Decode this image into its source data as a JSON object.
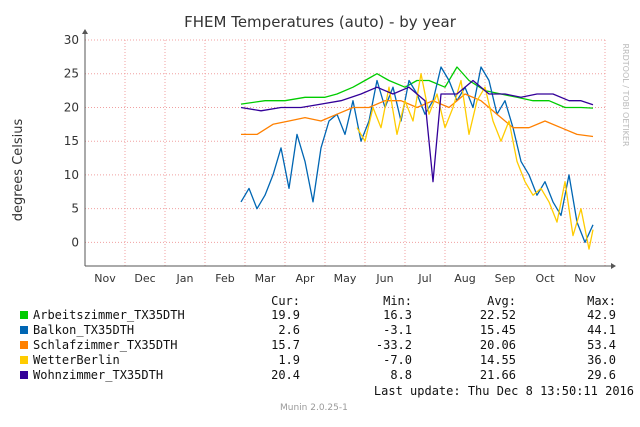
{
  "chart_data": {
    "type": "line",
    "title": "FHEM Temperatures (auto) - by year",
    "ylabel": "degrees Celsius",
    "watermark": "RRDTOOL / TOBI OETIKER",
    "months": [
      "Nov",
      "Dec",
      "Jan",
      "Feb",
      "Mar",
      "Apr",
      "May",
      "Jun",
      "Jul",
      "Aug",
      "Sep",
      "Oct",
      "Nov"
    ],
    "ylim": [
      -3.5,
      30
    ],
    "yticks": [
      0,
      5,
      10,
      15,
      20,
      25,
      30
    ],
    "grid": true,
    "series": [
      {
        "name": "Arbeitszimmer_TX35DTH",
        "color": "#00cc00",
        "x": [
          3.9,
          4.5,
          5,
          5.5,
          6,
          6.3,
          6.7,
          7,
          7.3,
          7.6,
          8,
          8.3,
          8.6,
          9,
          9.3,
          9.6,
          10,
          10.4,
          10.8,
          11.2,
          11.6,
          12,
          12.4,
          12.7
        ],
        "y": [
          20.5,
          21,
          21,
          21.5,
          21.5,
          22,
          23,
          24,
          25,
          24,
          23,
          24,
          24,
          23,
          26,
          24,
          22.5,
          22,
          21.5,
          21,
          21,
          20,
          20,
          19.9
        ]
      },
      {
        "name": "Balkon_TX35DTH",
        "color": "#0066b3",
        "x": [
          3.9,
          4.1,
          4.3,
          4.5,
          4.7,
          4.9,
          5.1,
          5.3,
          5.5,
          5.7,
          5.9,
          6.1,
          6.3,
          6.5,
          6.7,
          6.9,
          7.1,
          7.3,
          7.5,
          7.7,
          7.9,
          8.1,
          8.3,
          8.5,
          8.7,
          8.9,
          9.1,
          9.3,
          9.5,
          9.7,
          9.9,
          10.1,
          10.3,
          10.5,
          10.7,
          10.9,
          11.1,
          11.3,
          11.5,
          11.7,
          11.9,
          12.1,
          12.3,
          12.5,
          12.7
        ],
        "y": [
          6,
          8,
          5,
          7,
          10,
          14,
          8,
          16,
          12,
          6,
          14,
          18,
          19,
          16,
          21,
          15,
          18,
          24,
          20,
          23,
          18,
          24,
          22,
          19,
          21,
          26,
          24,
          21,
          23,
          20,
          26,
          24,
          19,
          21,
          17,
          12,
          10,
          7,
          9,
          6,
          4,
          10,
          3,
          0,
          2.6
        ]
      },
      {
        "name": "Schlafzimmer_TX35DTH",
        "color": "#ff8000",
        "x": [
          3.9,
          4.3,
          4.7,
          5.1,
          5.5,
          5.9,
          6.3,
          6.7,
          7.1,
          7.5,
          7.9,
          8.3,
          8.7,
          9.1,
          9.5,
          9.9,
          10.3,
          10.7,
          11.1,
          11.5,
          11.9,
          12.3,
          12.7
        ],
        "y": [
          16,
          16,
          17.5,
          18,
          18.5,
          18,
          19,
          20,
          20,
          21,
          21,
          20,
          21,
          20,
          22,
          21,
          19,
          17,
          17,
          18,
          17,
          16,
          15.7
        ]
      },
      {
        "name": "WetterBerlin",
        "color": "#ffcc00",
        "x": [
          6.8,
          7.0,
          7.2,
          7.4,
          7.6,
          7.8,
          8.0,
          8.2,
          8.4,
          8.6,
          8.8,
          9.0,
          9.2,
          9.4,
          9.6,
          9.8,
          10.0,
          10.2,
          10.4,
          10.6,
          10.8,
          11.0,
          11.2,
          11.4,
          11.6,
          11.8,
          12.0,
          12.2,
          12.4,
          12.6,
          12.7
        ],
        "y": [
          17,
          15,
          20,
          17,
          23,
          16,
          21,
          18,
          25,
          19,
          22,
          17,
          20,
          24,
          16,
          21,
          23,
          18,
          15,
          18,
          12,
          9,
          7,
          8,
          6,
          3,
          9,
          1,
          5,
          -1,
          1.9
        ]
      },
      {
        "name": "Wohnzimmer_TX35DTH",
        "color": "#330099",
        "x": [
          3.9,
          4.4,
          4.9,
          5.4,
          5.9,
          6.4,
          6.9,
          7.3,
          7.7,
          8.1,
          8.5,
          8.7,
          8.9,
          9.3,
          9.7,
          10.1,
          10.5,
          10.9,
          11.3,
          11.7,
          12.1,
          12.4,
          12.7
        ],
        "y": [
          20,
          19.5,
          20,
          20,
          20.5,
          21,
          22,
          23,
          22,
          23,
          21,
          9,
          22,
          22,
          24,
          22,
          22,
          21.5,
          22,
          22,
          21,
          21,
          20.4
        ]
      }
    ]
  },
  "legend": {
    "headers": {
      "cur": "Cur:",
      "min": "Min:",
      "avg": "Avg:",
      "max": "Max:"
    },
    "rows": [
      {
        "name": "Arbeitszimmer_TX35DTH",
        "cur": "19.9",
        "min": "16.3",
        "avg": "22.52",
        "max": "42.9"
      },
      {
        "name": "Balkon_TX35DTH",
        "cur": "2.6",
        "min": "-3.1",
        "avg": "15.45",
        "max": "44.1"
      },
      {
        "name": "Schlafzimmer_TX35DTH",
        "cur": "15.7",
        "min": "-33.2",
        "avg": "20.06",
        "max": "53.4"
      },
      {
        "name": "WetterBerlin",
        "cur": "1.9",
        "min": "-7.0",
        "avg": "14.55",
        "max": "36.0"
      },
      {
        "name": "Wohnzimmer_TX35DTH",
        "cur": "20.4",
        "min": "8.8",
        "avg": "21.66",
        "max": "29.6"
      }
    ],
    "last_update": "Last update:  Thu Dec  8 13:50:11 2016"
  },
  "footer": {
    "version": "Munin 2.0.25-1"
  }
}
